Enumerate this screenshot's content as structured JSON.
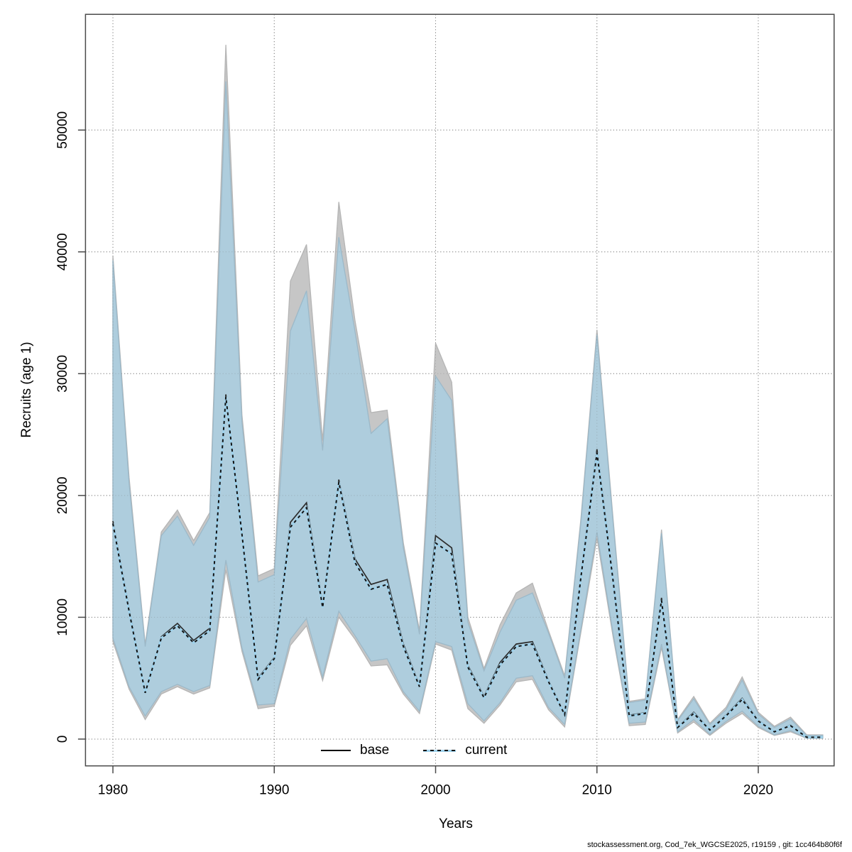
{
  "figure": {
    "xlabel": "Years",
    "ylabel": "Recruits (age 1)",
    "footer": "stockassessment.org, Cod_7ek_WGCSE2025, r19159 , git: 1cc464b80f6f"
  },
  "legend": {
    "items": [
      {
        "label": "base",
        "line_style": "solid",
        "line_color": "#000000"
      },
      {
        "label": "current",
        "line_style": "dashed",
        "line_color": "#141414",
        "line_under_color": "#9fd2ec"
      }
    ]
  },
  "colors": {
    "base_band": "#c6c6c6",
    "base_band_edge": "#b5b5b5",
    "current_band": "#aecddd",
    "current_band_edge": "#9cb9c9",
    "base_line": "#2b2b2b",
    "current_dash": "#141414",
    "current_under": "#9fd2ec",
    "grid": "#6f6f6f",
    "box": "#4a4a4a"
  },
  "chart_data": {
    "type": "line",
    "title": "",
    "xlabel": "Years",
    "ylabel": "Recruits (age 1)",
    "grid": "dotted",
    "legend_position": "bottom-center-inside",
    "xlim": [
      1978.3,
      2024.7
    ],
    "ylim": [
      -2200,
      59500
    ],
    "x_ticks": [
      1980,
      1990,
      2000,
      2010,
      2020
    ],
    "y_ticks": [
      0,
      10000,
      20000,
      30000,
      40000,
      50000
    ],
    "x": [
      1980,
      1981,
      1982,
      1983,
      1984,
      1985,
      1986,
      1987,
      1988,
      1989,
      1990,
      1991,
      1992,
      1993,
      1994,
      1995,
      1996,
      1997,
      1998,
      1999,
      2000,
      2001,
      2002,
      2003,
      2004,
      2005,
      2006,
      2007,
      2008,
      2009,
      2010,
      2011,
      2012,
      2013,
      2014,
      2015,
      2016,
      2017,
      2018,
      2019,
      2020,
      2021,
      2022,
      2023,
      2024
    ],
    "series": [
      {
        "name": "base",
        "style": "solid",
        "values": [
          17900,
          10700,
          3900,
          8400,
          9500,
          8100,
          9100,
          28300,
          17000,
          5000,
          6700,
          17800,
          19400,
          11000,
          21300,
          14800,
          12700,
          13100,
          7800,
          4400,
          16700,
          15700,
          6050,
          3500,
          6300,
          7800,
          8000,
          4800,
          2060,
          13400,
          23800,
          13200,
          1960,
          2160,
          11600,
          980,
          2200,
          780,
          1960,
          3350,
          1530,
          620,
          1150,
          160,
          160
        ],
        "ci_low": [
          8000,
          4100,
          1600,
          3700,
          4300,
          3700,
          4200,
          13900,
          7200,
          2500,
          2700,
          7700,
          9300,
          4800,
          10000,
          8200,
          6000,
          6100,
          3700,
          2100,
          7800,
          7300,
          2500,
          1300,
          2800,
          4700,
          4900,
          2400,
          1000,
          8700,
          16500,
          8400,
          1100,
          1200,
          7500,
          500,
          1400,
          300,
          1300,
          2100,
          950,
          300,
          600,
          60,
          60
        ],
        "ci_high": [
          39700,
          21500,
          7800,
          17000,
          18800,
          16300,
          18600,
          57000,
          26600,
          13400,
          14000,
          37600,
          40600,
          24500,
          44100,
          34400,
          26800,
          27000,
          16100,
          8900,
          32500,
          29300,
          10000,
          5800,
          9400,
          12000,
          12800,
          8900,
          5200,
          18000,
          33600,
          18100,
          3100,
          3300,
          17200,
          1600,
          3500,
          1300,
          2600,
          5100,
          2200,
          1050,
          1800,
          350,
          350
        ]
      },
      {
        "name": "current",
        "style": "dashed",
        "values": [
          17700,
          10500,
          3800,
          8300,
          9300,
          7900,
          8900,
          28100,
          16800,
          4900,
          6600,
          17400,
          19000,
          10800,
          21100,
          14500,
          12300,
          12700,
          7600,
          4300,
          16100,
          15200,
          5900,
          3400,
          6100,
          7600,
          7800,
          4700,
          2000,
          13200,
          23500,
          13000,
          1900,
          2100,
          11400,
          950,
          2100,
          750,
          1900,
          3250,
          1480,
          600,
          1100,
          150,
          150
        ],
        "ci_low": [
          8300,
          4300,
          1900,
          3900,
          4500,
          3900,
          4400,
          14700,
          7500,
          2800,
          2900,
          8200,
          9900,
          5100,
          10500,
          8500,
          6400,
          6600,
          3900,
          2300,
          8000,
          7600,
          2900,
          1500,
          3000,
          5000,
          5200,
          2600,
          1200,
          9000,
          17000,
          8700,
          1300,
          1400,
          7800,
          600,
          1600,
          400,
          1450,
          2300,
          1050,
          350,
          700,
          80,
          80
        ],
        "ci_high": [
          39300,
          21000,
          7600,
          16700,
          18300,
          15900,
          18200,
          54000,
          26000,
          12900,
          13500,
          33500,
          36800,
          23700,
          41200,
          33500,
          25100,
          26300,
          15700,
          8600,
          29800,
          27800,
          9600,
          5600,
          8800,
          11400,
          12000,
          8700,
          5000,
          17700,
          33200,
          17800,
          3000,
          3200,
          16900,
          1500,
          3300,
          1200,
          2400,
          4850,
          2050,
          950,
          1650,
          300,
          300
        ]
      }
    ]
  }
}
